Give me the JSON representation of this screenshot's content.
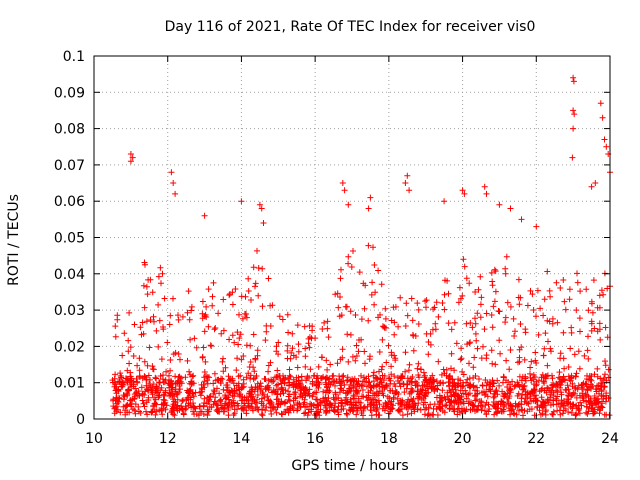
{
  "chart_data": {
    "type": "scatter",
    "title": "Day 116 of 2021, Rate Of TEC Index for receiver vis0",
    "xlabel": "GPS time / hours",
    "ylabel": "ROTI / TECUs",
    "xlim": [
      10,
      24
    ],
    "ylim": [
      0,
      0.1
    ],
    "x_ticks": [
      10,
      12,
      14,
      16,
      18,
      20,
      22,
      24
    ],
    "x_tick_labels": [
      "10",
      "12",
      "14",
      "16",
      "18",
      "20",
      "22",
      "24"
    ],
    "y_ticks": [
      0,
      0.01,
      0.02,
      0.03,
      0.04,
      0.05,
      0.06,
      0.07,
      0.08,
      0.09,
      0.1
    ],
    "y_tick_labels": [
      "0",
      "0.01",
      "0.02",
      "0.03",
      "0.04",
      "0.05",
      "0.06",
      "0.07",
      "0.08",
      "0.09",
      "0.1"
    ],
    "grid": true,
    "marker": "+",
    "color": "#ff0000",
    "data_x_range": [
      10.5,
      24
    ],
    "baseline_band": [
      0.002,
      0.012
    ],
    "series": [
      {
        "name": "ROTI",
        "note": "dense cloud of several thousand points; representative envelope and highlighted peaks",
        "points": [
          [
            11.0,
            0.073
          ],
          [
            11.0,
            0.071
          ],
          [
            11.05,
            0.072
          ],
          [
            12.1,
            0.068
          ],
          [
            12.2,
            0.062
          ],
          [
            12.15,
            0.065
          ],
          [
            13.0,
            0.056
          ],
          [
            14.0,
            0.06
          ],
          [
            14.5,
            0.059
          ],
          [
            14.55,
            0.058
          ],
          [
            14.6,
            0.054
          ],
          [
            16.75,
            0.065
          ],
          [
            16.8,
            0.063
          ],
          [
            16.9,
            0.059
          ],
          [
            17.5,
            0.061
          ],
          [
            17.45,
            0.058
          ],
          [
            18.5,
            0.067
          ],
          [
            18.45,
            0.065
          ],
          [
            18.55,
            0.063
          ],
          [
            19.5,
            0.06
          ],
          [
            20.0,
            0.063
          ],
          [
            20.05,
            0.062
          ],
          [
            20.6,
            0.064
          ],
          [
            20.65,
            0.062
          ],
          [
            21.0,
            0.059
          ],
          [
            21.3,
            0.058
          ],
          [
            21.6,
            0.055
          ],
          [
            22.0,
            0.053
          ],
          [
            23.0,
            0.094
          ],
          [
            23.02,
            0.093
          ],
          [
            23.0,
            0.085
          ],
          [
            23.03,
            0.084
          ],
          [
            23.0,
            0.08
          ],
          [
            22.98,
            0.072
          ],
          [
            23.5,
            0.064
          ],
          [
            23.6,
            0.065
          ],
          [
            23.75,
            0.087
          ],
          [
            23.8,
            0.083
          ],
          [
            23.85,
            0.077
          ],
          [
            23.9,
            0.075
          ],
          [
            23.95,
            0.073
          ],
          [
            24.0,
            0.068
          ]
        ]
      }
    ]
  }
}
